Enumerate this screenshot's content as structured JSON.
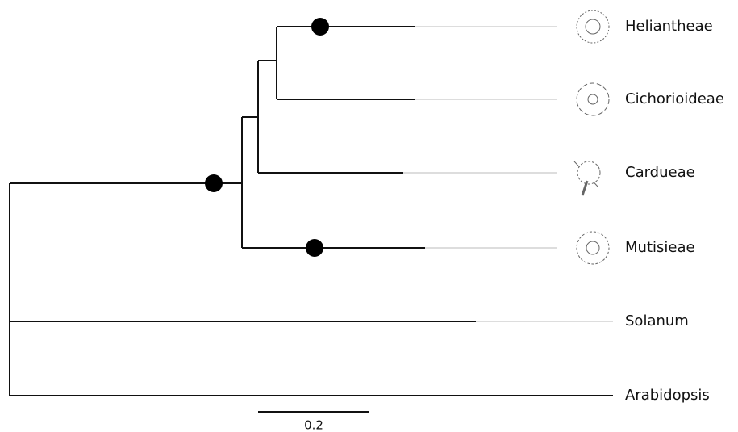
{
  "tree": {
    "leaves": [
      "Heliantheae",
      "Cichorioideae",
      "Cardueae",
      "Mutisieae",
      "Solanum",
      "Arabidopsis"
    ],
    "scale_label": "0.2"
  }
}
